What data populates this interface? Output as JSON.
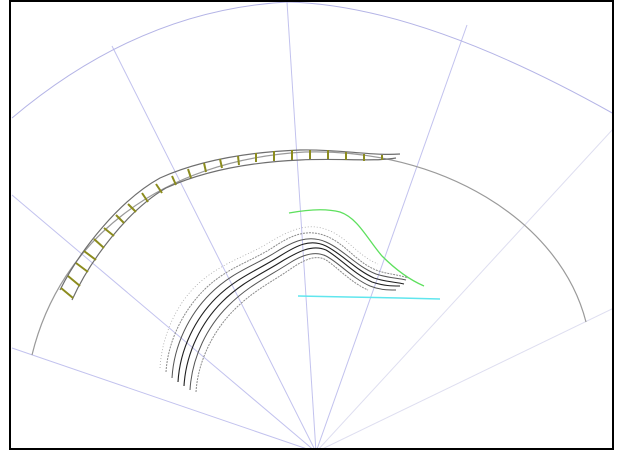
{
  "colors": {
    "frame": "#000000",
    "background": "#ffffff",
    "fan_lines": "#c2c2ee",
    "fan_outer_arc": "#b4b4e6",
    "depth_arc": "#9a9a9a",
    "marker_track": "#6e6e6e",
    "marker_ticks": "#8c8c1e",
    "bundle_core": "#202020",
    "bundle_outline": "#6a6a6a",
    "green_trace": "#5ee05e",
    "cyan_trace": "#60e6ee"
  },
  "icons": {
    "fan": "sector-scan-fan",
    "marker_track": "ladder-track",
    "bundle": "tract-bundle",
    "green_trace": "green-polyline",
    "cyan_trace": "cyan-polyline"
  }
}
